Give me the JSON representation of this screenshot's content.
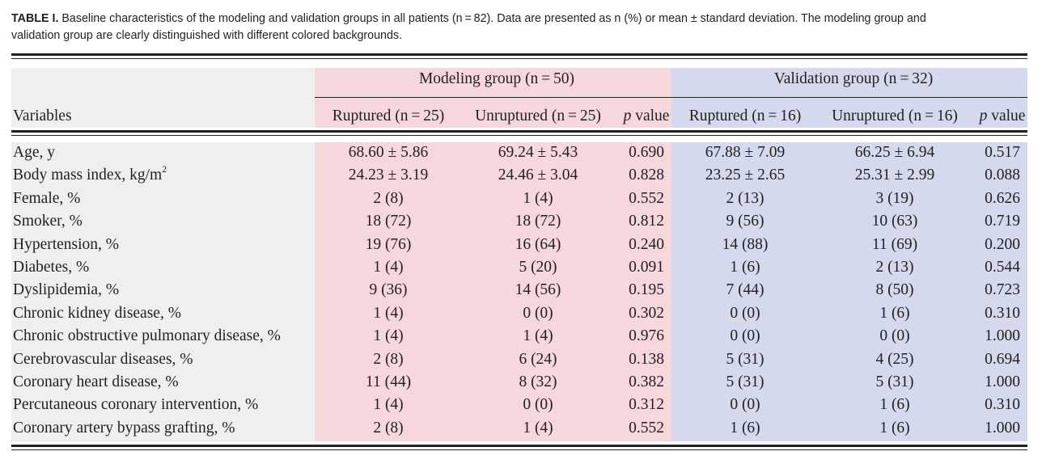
{
  "caption": {
    "label": "TABLE I.",
    "text": " Baseline characteristics of the modeling and validation groups in all patients (n = 82). Data are presented as n (%) or mean ± standard deviation. The modeling group and validation group are clearly distinguished with different colored backgrounds."
  },
  "header": {
    "variables": "Variables",
    "modeling_group": "Modeling group (n = 50)",
    "validation_group": "Validation group (n = 32)",
    "model_ruptured": "Ruptured (n = 25)",
    "model_unruptured": "Unruptured (n = 25)",
    "model_p": "p value",
    "valid_ruptured": "Ruptured (n = 16)",
    "valid_unruptured": "Unruptured (n = 16)",
    "valid_p": "p value"
  },
  "rows": [
    {
      "name": "Age, y",
      "mr": "68.60 ± 5.86",
      "mu": "69.24 ± 5.43",
      "mp": "0.690",
      "vr": "67.88 ± 7.09",
      "vu": "66.25 ± 6.94",
      "vp": "0.517"
    },
    {
      "name": "Body mass index, kg/m",
      "sup": "2",
      "mr": "24.23 ± 3.19",
      "mu": "24.46 ± 3.04",
      "mp": "0.828",
      "vr": "23.25 ± 2.65",
      "vu": "25.31 ± 2.99",
      "vp": "0.088"
    },
    {
      "name": "Female, %",
      "mr": "2 (8)",
      "mu": "1 (4)",
      "mp": "0.552",
      "vr": "2 (13)",
      "vu": "3 (19)",
      "vp": "0.626"
    },
    {
      "name": "Smoker, %",
      "mr": "18 (72)",
      "mu": "18 (72)",
      "mp": "0.812",
      "vr": "9 (56)",
      "vu": "10 (63)",
      "vp": "0.719"
    },
    {
      "name": "Hypertension, %",
      "mr": "19 (76)",
      "mu": "16 (64)",
      "mp": "0.240",
      "vr": "14 (88)",
      "vu": "11 (69)",
      "vp": "0.200"
    },
    {
      "name": "Diabetes, %",
      "mr": "1 (4)",
      "mu": "5 (20)",
      "mp": "0.091",
      "vr": "1 (6)",
      "vu": "2 (13)",
      "vp": "0.544"
    },
    {
      "name": "Dyslipidemia, %",
      "mr": "9 (36)",
      "mu": "14 (56)",
      "mp": "0.195",
      "vr": "7 (44)",
      "vu": "8 (50)",
      "vp": "0.723"
    },
    {
      "name": "Chronic kidney disease, %",
      "mr": "1 (4)",
      "mu": "0 (0)",
      "mp": "0.302",
      "vr": "0 (0)",
      "vu": "1 (6)",
      "vp": "0.310"
    },
    {
      "name": "Chronic obstructive pulmonary disease, %",
      "mr": "1 (4)",
      "mu": "1 (4)",
      "mp": "0.976",
      "vr": "0 (0)",
      "vu": "0 (0)",
      "vp": "1.000"
    },
    {
      "name": "Cerebrovascular diseases, %",
      "mr": "2 (8)",
      "mu": "6 (24)",
      "mp": "0.138",
      "vr": "5 (31)",
      "vu": "4 (25)",
      "vp": "0.694"
    },
    {
      "name": "Coronary heart disease, %",
      "mr": "11 (44)",
      "mu": "8 (32)",
      "mp": "0.382",
      "vr": "5 (31)",
      "vu": "5 (31)",
      "vp": "1.000"
    },
    {
      "name": "Percutaneous coronary intervention, %",
      "mr": "1 (4)",
      "mu": "0 (0)",
      "mp": "0.312",
      "vr": "0 (0)",
      "vu": "1 (6)",
      "vp": "0.310"
    },
    {
      "name": "Coronary artery bypass grafting, %",
      "mr": "2 (8)",
      "mu": "1 (4)",
      "mp": "0.552",
      "vr": "1 (6)",
      "vu": "1 (6)",
      "vp": "1.000"
    }
  ],
  "colors": {
    "variables_bg": "#efefef",
    "modeling_bg": "#f6d7dc",
    "validation_bg": "#d5d9ed",
    "text": "#231f20"
  }
}
